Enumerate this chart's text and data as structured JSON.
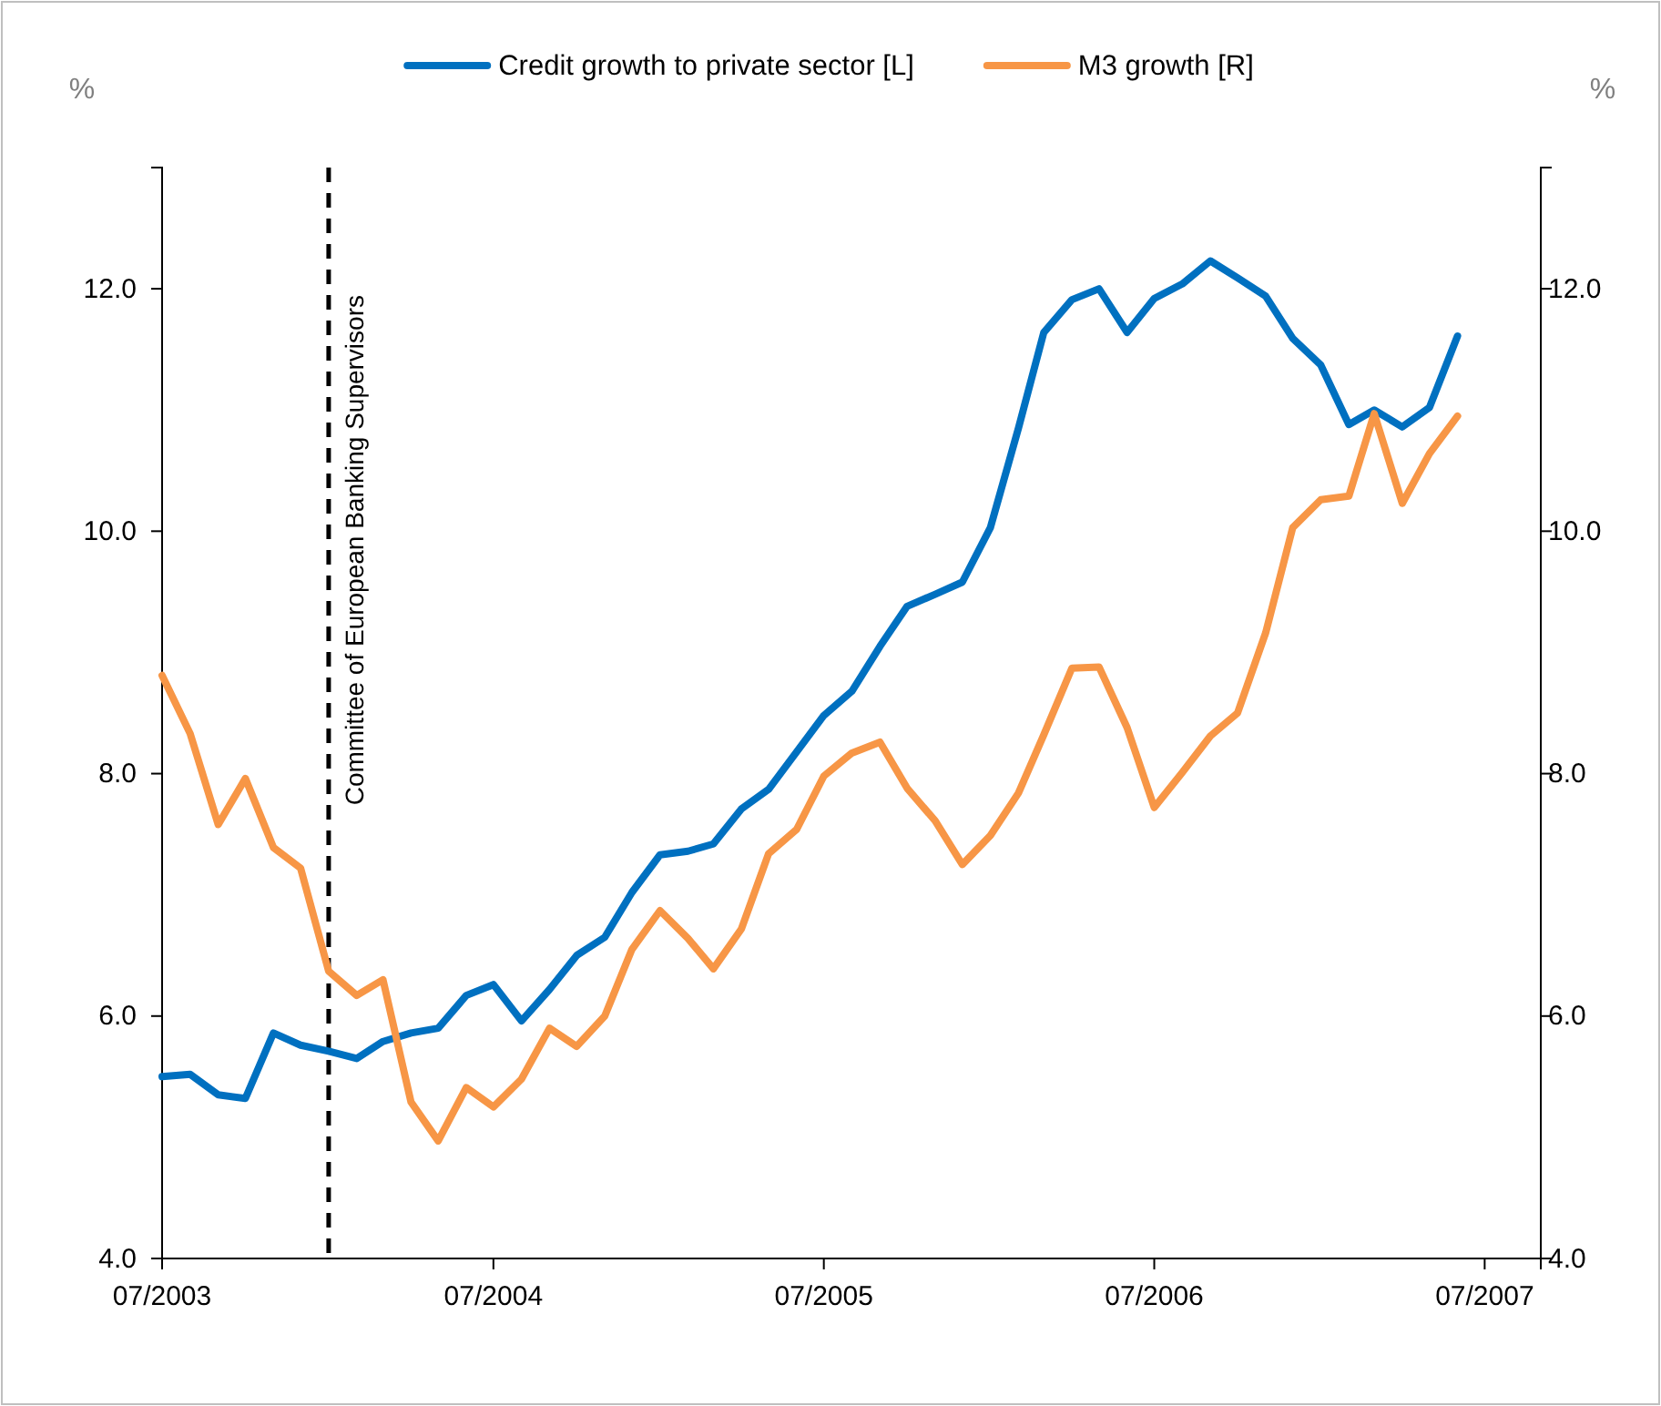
{
  "chart_data": {
    "type": "line",
    "ylabel": "%",
    "y2label": "%",
    "legend": "top",
    "line_style": "solid",
    "marker": "none",
    "x": [
      "2003-07",
      "2003-08",
      "2003-09",
      "2003-10",
      "2003-11",
      "2003-12",
      "2004-01",
      "2004-02",
      "2004-03",
      "2004-04",
      "2004-05",
      "2004-06",
      "2004-07",
      "2004-08",
      "2004-09",
      "2004-10",
      "2004-11",
      "2004-12",
      "2005-01",
      "2005-02",
      "2005-03",
      "2005-04",
      "2005-05",
      "2005-06",
      "2005-07",
      "2005-08",
      "2005-09",
      "2005-10",
      "2005-11",
      "2005-12",
      "2006-01",
      "2006-02",
      "2006-03",
      "2006-04",
      "2006-05",
      "2006-06",
      "2006-07",
      "2006-08",
      "2006-09",
      "2006-10",
      "2006-11",
      "2006-12",
      "2007-01",
      "2007-02",
      "2007-03",
      "2007-04",
      "2007-05",
      "2007-06"
    ],
    "xlim": [
      "2003-07",
      "2007-09"
    ],
    "xticks": [
      {
        "value": "2003-07",
        "label": "07/2003"
      },
      {
        "value": "2004-07",
        "label": "07/2004"
      },
      {
        "value": "2005-07",
        "label": "07/2005"
      },
      {
        "value": "2006-07",
        "label": "07/2006"
      },
      {
        "value": "2007-07",
        "label": "07/2007"
      }
    ],
    "ylim": [
      4,
      13
    ],
    "yticks": [
      {
        "value": 4,
        "label": "4.0"
      },
      {
        "value": 6,
        "label": "6.0"
      },
      {
        "value": 8,
        "label": "8.0"
      },
      {
        "value": 10,
        "label": "10.0"
      },
      {
        "value": 12,
        "label": "12.0"
      }
    ],
    "y2lim": [
      4,
      13
    ],
    "y2ticks": [
      {
        "value": 4,
        "label": "4.0"
      },
      {
        "value": 6,
        "label": "6.0"
      },
      {
        "value": 8,
        "label": "8.0"
      },
      {
        "value": 10,
        "label": "10.0"
      },
      {
        "value": 12,
        "label": "12.0"
      }
    ],
    "series": [
      {
        "name": "Credit growth to private sector [L]",
        "color": "#0070c0",
        "values": [
          5.5,
          5.52,
          5.35,
          5.32,
          5.86,
          5.76,
          5.71,
          5.65,
          5.79,
          5.86,
          5.9,
          6.17,
          6.26,
          5.96,
          6.22,
          6.5,
          6.65,
          7.02,
          7.33,
          7.36,
          7.42,
          7.71,
          7.87,
          8.18,
          8.48,
          8.68,
          9.05,
          9.38,
          9.48,
          9.58,
          10.03,
          10.85,
          11.64,
          11.91,
          12.0,
          11.64,
          11.92,
          12.04,
          12.23,
          12.09,
          11.94,
          11.59,
          11.37,
          10.88,
          11.0,
          10.86,
          11.02,
          11.61
        ]
      },
      {
        "name": "M3 growth [R]",
        "color": "#f79646",
        "axis": "y2",
        "values": [
          8.81,
          8.33,
          7.58,
          7.96,
          7.39,
          7.22,
          6.37,
          6.17,
          6.3,
          5.29,
          4.97,
          5.41,
          5.25,
          5.48,
          5.9,
          5.75,
          6.0,
          6.55,
          6.87,
          6.64,
          6.39,
          6.72,
          7.34,
          7.54,
          7.98,
          8.17,
          8.26,
          7.88,
          7.61,
          7.25,
          7.49,
          7.84,
          8.32,
          8.87,
          8.88,
          8.38,
          7.72,
          8.01,
          8.31,
          8.5,
          9.16,
          10.03,
          10.26,
          10.29,
          10.97,
          10.23,
          10.64,
          10.95
        ]
      }
    ],
    "ref_lines": [
      {
        "axis": "x",
        "value": "2004-01",
        "label": "Committee of European Banking Supervisors",
        "color": "#000000",
        "line_style": "dashed"
      }
    ]
  }
}
